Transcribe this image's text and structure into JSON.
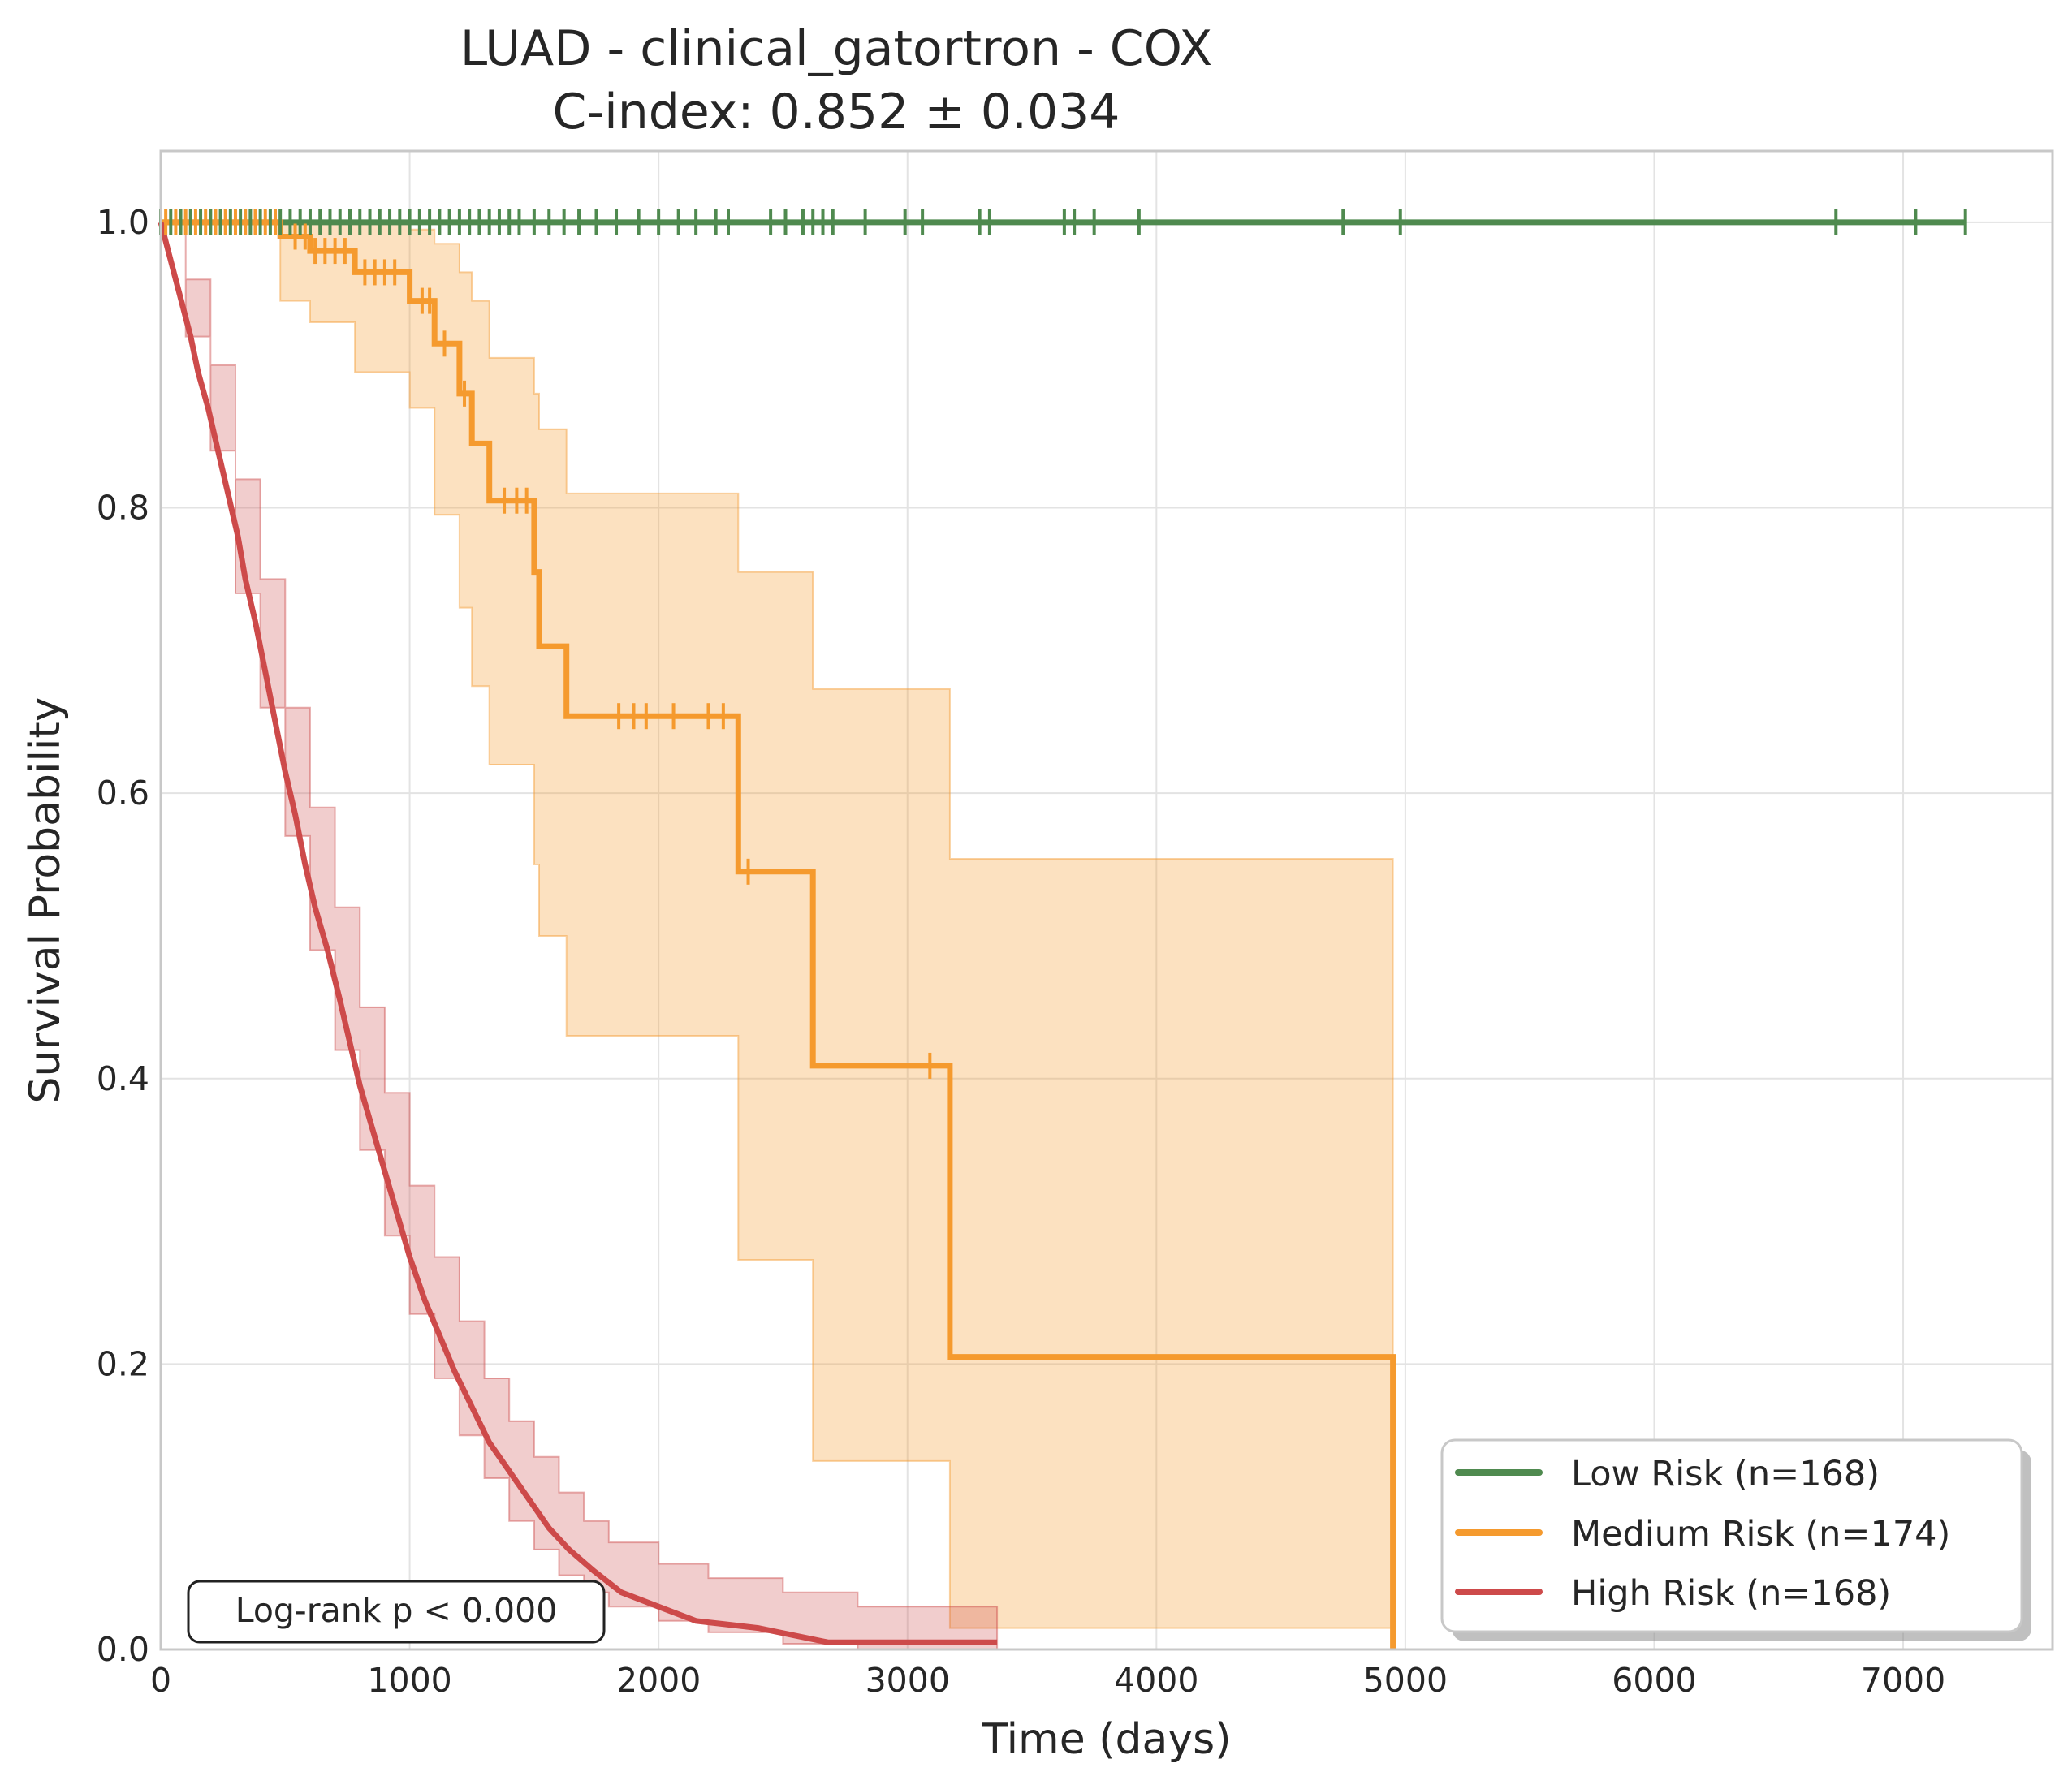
{
  "chart_data": {
    "type": "line",
    "subtype": "kaplan-meier",
    "title_line1": "LUAD - clinical_gatortron - COX",
    "title_line2": "C-index: 0.852 ± 0.034",
    "xlabel": "Time (days)",
    "ylabel": "Survival Probability",
    "xlim": [
      0,
      7600
    ],
    "ylim": [
      0,
      1.05
    ],
    "xticks": [
      0,
      1000,
      2000,
      3000,
      4000,
      5000,
      6000,
      7000
    ],
    "xtick_labels": [
      "0",
      "1000",
      "2000",
      "3000",
      "4000",
      "5000",
      "6000",
      "7000"
    ],
    "yticks": [
      0,
      0.2,
      0.4,
      0.6,
      0.8,
      1.0
    ],
    "ytick_labels": [
      "0.0",
      "0.2",
      "0.4",
      "0.6",
      "0.8",
      "1.0"
    ],
    "grid": true,
    "legend_position": "bottom-right",
    "annotation": "Log-rank p < 0.000",
    "series": [
      {
        "name": "Low Risk (n=168)",
        "color": "#4f8a4f",
        "points": [
          [
            0,
            1.0
          ],
          [
            7250,
            1.0
          ]
        ],
        "censor_times": [
          0,
          40,
          80,
          120,
          160,
          200,
          240,
          280,
          320,
          360,
          400,
          440,
          480,
          520,
          560,
          600,
          640,
          680,
          720,
          760,
          800,
          840,
          880,
          920,
          960,
          1000,
          1040,
          1080,
          1120,
          1160,
          1200,
          1240,
          1280,
          1320,
          1360,
          1400,
          1440,
          1500,
          1560,
          1620,
          1680,
          1750,
          1830,
          1920,
          2000,
          2080,
          2150,
          2230,
          2280,
          2450,
          2510,
          2580,
          2620,
          2660,
          2700,
          2830,
          2990,
          3060,
          3290,
          3330,
          3630,
          3670,
          3750,
          3930,
          4750,
          4980,
          6730,
          7050,
          7250
        ],
        "ci": []
      },
      {
        "name": "Medium Risk (n=174)",
        "color": "#f59a2e",
        "points": [
          [
            0,
            1.0
          ],
          [
            480,
            1.0
          ],
          [
            480,
            0.99
          ],
          [
            600,
            0.99
          ],
          [
            600,
            0.98
          ],
          [
            780,
            0.98
          ],
          [
            780,
            0.965
          ],
          [
            1000,
            0.965
          ],
          [
            1000,
            0.945
          ],
          [
            1100,
            0.945
          ],
          [
            1100,
            0.915
          ],
          [
            1200,
            0.915
          ],
          [
            1200,
            0.88
          ],
          [
            1250,
            0.88
          ],
          [
            1250,
            0.845
          ],
          [
            1320,
            0.845
          ],
          [
            1320,
            0.805
          ],
          [
            1500,
            0.805
          ],
          [
            1500,
            0.755
          ],
          [
            1520,
            0.755
          ],
          [
            1520,
            0.703
          ],
          [
            1630,
            0.703
          ],
          [
            1630,
            0.654
          ],
          [
            2320,
            0.654
          ],
          [
            2320,
            0.545
          ],
          [
            2620,
            0.545
          ],
          [
            2620,
            0.409
          ],
          [
            3170,
            0.409
          ],
          [
            3170,
            0.205
          ],
          [
            4950,
            0.205
          ],
          [
            4950,
            0.0
          ]
        ],
        "censor_times": [
          20,
          60,
          100,
          140,
          180,
          220,
          260,
          300,
          340,
          380,
          420,
          460,
          540,
          580,
          620,
          660,
          700,
          740,
          820,
          860,
          900,
          940,
          1050,
          1080,
          1140,
          1220,
          1380,
          1430,
          1470,
          1840,
          1900,
          1950,
          2060,
          2200,
          2260,
          2360,
          3090
        ],
        "ci": [
          [
            0,
            1.0,
            1.0
          ],
          [
            480,
            0.945,
            1.0
          ],
          [
            600,
            0.93,
            1.0
          ],
          [
            780,
            0.895,
            1.0
          ],
          [
            1000,
            0.87,
            0.995
          ],
          [
            1100,
            0.795,
            0.985
          ],
          [
            1200,
            0.73,
            0.965
          ],
          [
            1250,
            0.675,
            0.945
          ],
          [
            1320,
            0.62,
            0.905
          ],
          [
            1500,
            0.55,
            0.88
          ],
          [
            1520,
            0.5,
            0.855
          ],
          [
            1630,
            0.43,
            0.81
          ],
          [
            2320,
            0.273,
            0.755
          ],
          [
            2620,
            0.132,
            0.673
          ],
          [
            3170,
            0.015,
            0.554
          ],
          [
            4950,
            0.015,
            0.554
          ]
        ]
      },
      {
        "name": "High Risk (n=168)",
        "color": "#cd4a4a",
        "points": [
          [
            0,
            1.0
          ],
          [
            30,
            0.98
          ],
          [
            60,
            0.96
          ],
          [
            90,
            0.94
          ],
          [
            120,
            0.92
          ],
          [
            150,
            0.895
          ],
          [
            190,
            0.87
          ],
          [
            230,
            0.84
          ],
          [
            270,
            0.81
          ],
          [
            310,
            0.78
          ],
          [
            340,
            0.75
          ],
          [
            380,
            0.72
          ],
          [
            420,
            0.685
          ],
          [
            460,
            0.65
          ],
          [
            500,
            0.615
          ],
          [
            540,
            0.585
          ],
          [
            580,
            0.55
          ],
          [
            620,
            0.52
          ],
          [
            670,
            0.49
          ],
          [
            720,
            0.455
          ],
          [
            760,
            0.425
          ],
          [
            800,
            0.395
          ],
          [
            850,
            0.365
          ],
          [
            900,
            0.335
          ],
          [
            950,
            0.305
          ],
          [
            1000,
            0.275
          ],
          [
            1060,
            0.245
          ],
          [
            1120,
            0.22
          ],
          [
            1180,
            0.195
          ],
          [
            1250,
            0.17
          ],
          [
            1320,
            0.145
          ],
          [
            1400,
            0.125
          ],
          [
            1480,
            0.105
          ],
          [
            1560,
            0.085
          ],
          [
            1640,
            0.07
          ],
          [
            1740,
            0.055
          ],
          [
            1850,
            0.04
          ],
          [
            2000,
            0.03
          ],
          [
            2150,
            0.02
          ],
          [
            2400,
            0.015
          ],
          [
            2680,
            0.005
          ],
          [
            3360,
            0.005
          ]
        ],
        "censor_times": [],
        "ci": [
          [
            0,
            1.0,
            1.0
          ],
          [
            100,
            0.92,
            0.96
          ],
          [
            200,
            0.84,
            0.9
          ],
          [
            300,
            0.74,
            0.82
          ],
          [
            400,
            0.66,
            0.75
          ],
          [
            500,
            0.57,
            0.66
          ],
          [
            600,
            0.49,
            0.59
          ],
          [
            700,
            0.42,
            0.52
          ],
          [
            800,
            0.35,
            0.45
          ],
          [
            900,
            0.29,
            0.39
          ],
          [
            1000,
            0.235,
            0.325
          ],
          [
            1100,
            0.19,
            0.275
          ],
          [
            1200,
            0.15,
            0.23
          ],
          [
            1300,
            0.12,
            0.19
          ],
          [
            1400,
            0.09,
            0.16
          ],
          [
            1500,
            0.07,
            0.135
          ],
          [
            1600,
            0.052,
            0.11
          ],
          [
            1700,
            0.04,
            0.09
          ],
          [
            1800,
            0.03,
            0.075
          ],
          [
            2000,
            0.02,
            0.06
          ],
          [
            2200,
            0.012,
            0.05
          ],
          [
            2500,
            0.004,
            0.04
          ],
          [
            2800,
            0.0,
            0.03
          ],
          [
            3360,
            0.0,
            0.025
          ]
        ]
      }
    ]
  }
}
